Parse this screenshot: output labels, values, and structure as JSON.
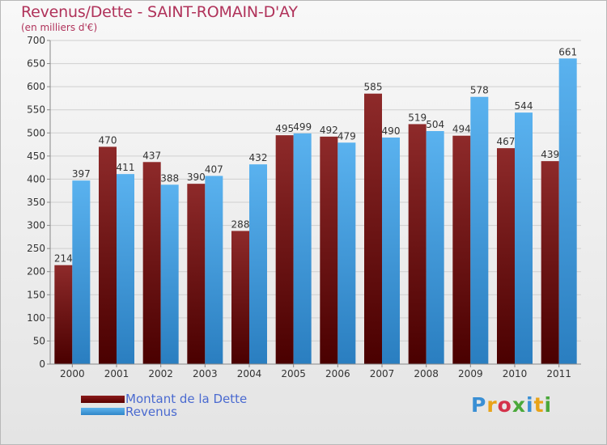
{
  "title": "Revenus/Dette - SAINT-ROMAIN-D'AY",
  "subtitle": "(en milliers d'€)",
  "logo": {
    "letters": [
      "P",
      "r",
      "o",
      "x",
      "i",
      "t",
      "i"
    ],
    "colors": [
      "#3a8fd4",
      "#e8a318",
      "#d4324a",
      "#4aa83a",
      "#3a8fd4",
      "#e8a318",
      "#4aa83a"
    ]
  },
  "legend": {
    "dette_label": "Montant de la Dette",
    "revenus_label": "Revenus"
  },
  "colors": {
    "dette": "#7a1515",
    "revenus": "#4aa3e6",
    "title": "#b0325a"
  },
  "chart_data": {
    "type": "bar",
    "categories": [
      "2000",
      "2001",
      "2002",
      "2003",
      "2004",
      "2005",
      "2006",
      "2007",
      "2008",
      "2009",
      "2010",
      "2011"
    ],
    "series": [
      {
        "name": "Montant de la Dette",
        "values": [
          214,
          470,
          437,
          390,
          288,
          495,
          492,
          585,
          519,
          494,
          467,
          439
        ]
      },
      {
        "name": "Revenus",
        "values": [
          397,
          411,
          388,
          407,
          432,
          499,
          479,
          490,
          504,
          578,
          544,
          661
        ]
      }
    ],
    "yticks": [
      0,
      50,
      100,
      150,
      200,
      250,
      300,
      350,
      400,
      450,
      500,
      550,
      600,
      650,
      700
    ],
    "ylim": [
      0,
      700
    ],
    "grid": true,
    "legend_position": "bottom-left"
  }
}
